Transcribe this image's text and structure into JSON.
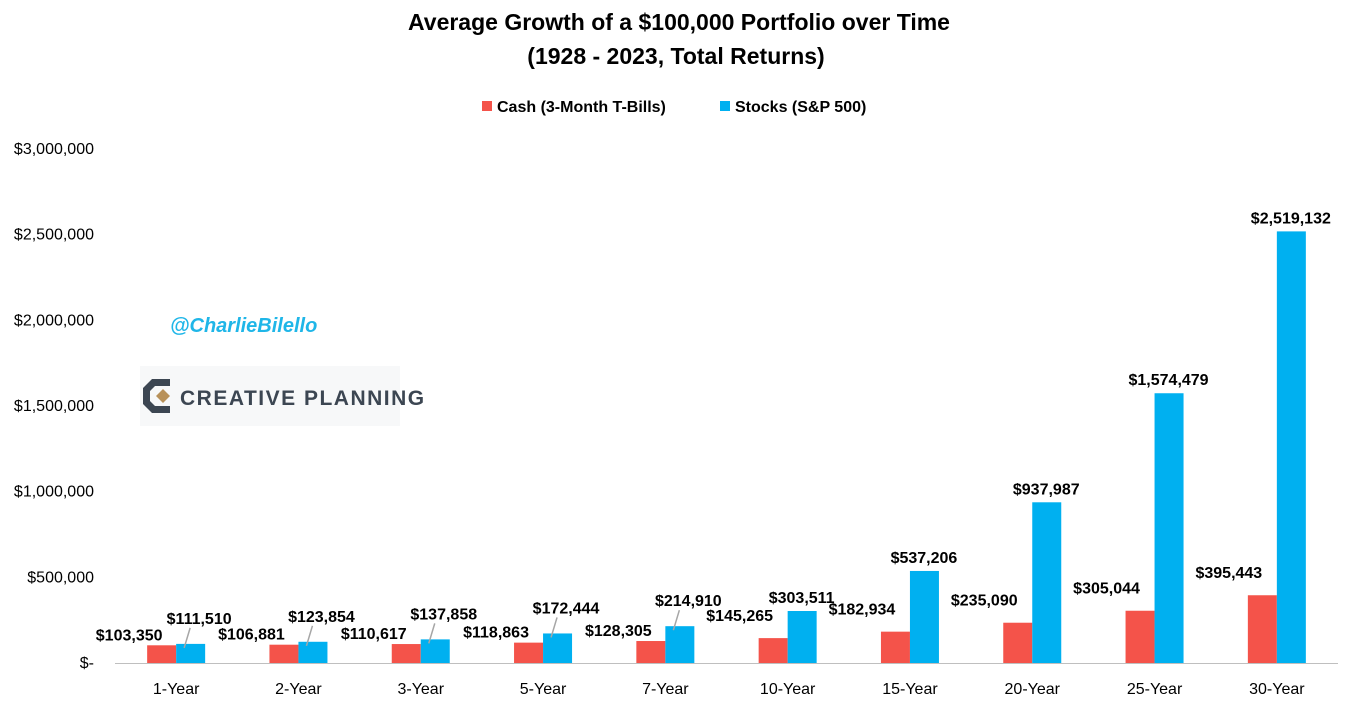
{
  "chart_data": {
    "type": "bar",
    "title_line1": "Average Growth of a $100,000 Portfolio over Time",
    "title_line2": "(1928 - 2023, Total Returns)",
    "categories": [
      "1-Year",
      "2-Year",
      "3-Year",
      "5-Year",
      "7-Year",
      "10-Year",
      "15-Year",
      "20-Year",
      "25-Year",
      "30-Year"
    ],
    "series": [
      {
        "name": "Cash (3-Month T-Bills)",
        "color": "#f4534a",
        "values": [
          103350,
          106881,
          110617,
          118863,
          128305,
          145265,
          182934,
          235090,
          305044,
          395443
        ],
        "labels": [
          "$103,350",
          "$106,881",
          "$110,617",
          "$118,863",
          "$128,305",
          "$145,265",
          "$182,934",
          "$235,090",
          "$305,044",
          "$395,443"
        ]
      },
      {
        "name": "Stocks (S&P 500)",
        "color": "#00b0f0",
        "values": [
          111510,
          123854,
          137858,
          172444,
          214910,
          303511,
          537206,
          937987,
          1574479,
          2519132
        ],
        "labels": [
          "$111,510",
          "$123,854",
          "$137,858",
          "$172,444",
          "$214,910",
          "$303,511",
          "$537,206",
          "$937,987",
          "$1,574,479",
          "$2,519,132"
        ]
      }
    ],
    "ylim": [
      0,
      3000000
    ],
    "yticks": [
      0,
      500000,
      1000000,
      1500000,
      2000000,
      2500000,
      3000000
    ],
    "ytick_labels": [
      "$-",
      "$500,000",
      "$1,000,000",
      "$1,500,000",
      "$2,000,000",
      "$2,500,000",
      "$3,000,000"
    ],
    "legend_position": "top-center",
    "grid": false,
    "xlabel": "",
    "ylabel": ""
  },
  "watermark": {
    "handle": "@CharlieBilello",
    "handle_color": "#1fb6e8",
    "logo_text": "CREATIVE PLANNING",
    "logo_color": "#3c4652",
    "logo_accent": "#b8915a"
  }
}
